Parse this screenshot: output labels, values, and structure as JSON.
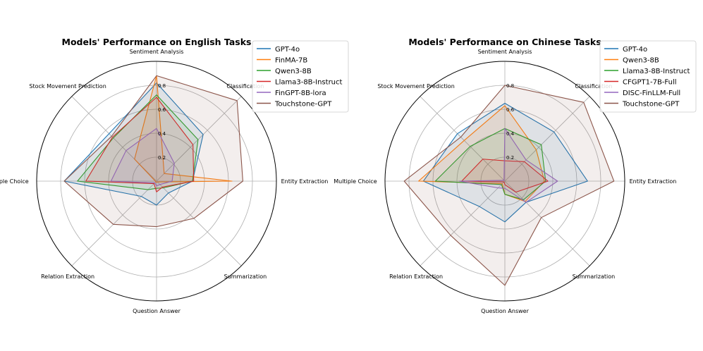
{
  "chart_data": [
    {
      "type": "radar",
      "title": "Models' Performance on English Tasks",
      "axes": [
        "Sentiment Analysis",
        "Classification",
        "Entity Extraction",
        "Summarization",
        "Question Answer",
        "Relation Extraction",
        "Multiple Choice",
        "Stock Movement Prediction"
      ],
      "rlim": [
        0,
        1
      ],
      "rticks": [
        "0.2",
        "0.4",
        "0.6",
        "0.8"
      ],
      "rtick_values": [
        0.2,
        0.4,
        0.6,
        0.8
      ],
      "grid": true,
      "legend": "top-right",
      "series": [
        {
          "name": "GPT-4o",
          "color": "#1f77b4",
          "values": [
            0.82,
            0.55,
            0.3,
            0.14,
            0.2,
            0.18,
            0.77,
            0.56
          ]
        },
        {
          "name": "FinMA-7B",
          "color": "#ff7f0e",
          "values": [
            0.88,
            0.09,
            0.63,
            0.01,
            0.01,
            0.01,
            0.01,
            0.26
          ]
        },
        {
          "name": "Qwen3-8B",
          "color": "#2ca02c",
          "values": [
            0.72,
            0.49,
            0.3,
            0.08,
            0.06,
            0.1,
            0.66,
            0.51
          ]
        },
        {
          "name": "Llama3-8B-Instruct",
          "color": "#d62728",
          "values": [
            0.7,
            0.43,
            0.31,
            0.07,
            0.09,
            0.03,
            0.59,
            0.52
          ]
        },
        {
          "name": "FinGPT-8B-lora",
          "color": "#9467bd",
          "values": [
            0.44,
            0.21,
            0.13,
            0.04,
            0.04,
            0.02,
            0.38,
            0.36
          ]
        },
        {
          "name": "Touchstone-GPT",
          "color": "#8c564b",
          "values": [
            0.88,
            0.95,
            0.72,
            0.44,
            0.38,
            0.51,
            0.77,
            0.53
          ]
        }
      ]
    },
    {
      "type": "radar",
      "title": "Models' Performance on Chinese Tasks",
      "axes": [
        "Sentiment Analysis",
        "Classification",
        "Entity Extraction",
        "Summarization",
        "Question Answer",
        "Relation Extraction",
        "Multiple Choice",
        "Stock Movement Prediction"
      ],
      "rlim": [
        0,
        1
      ],
      "rticks": [
        "0.2",
        "0.4",
        "0.6",
        "0.8"
      ],
      "rtick_values": [
        0.2,
        0.4,
        0.6,
        0.8
      ],
      "grid": true,
      "legend": "top-right",
      "series": [
        {
          "name": "GPT-4o",
          "color": "#1f77b4",
          "values": [
            0.65,
            0.58,
            0.69,
            0.25,
            0.34,
            0.3,
            0.68,
            0.56
          ]
        },
        {
          "name": "Qwen3-8B",
          "color": "#ff7f0e",
          "values": [
            0.63,
            0.37,
            0.33,
            0.24,
            0.11,
            0.03,
            0.72,
            0.48
          ]
        },
        {
          "name": "Llama3-8B-Instruct",
          "color": "#2ca02c",
          "values": [
            0.44,
            0.43,
            0.34,
            0.22,
            0.11,
            0.04,
            0.58,
            0.41
          ]
        },
        {
          "name": "CFGPT1-7B-Full",
          "color": "#d62728",
          "values": [
            0.17,
            0.23,
            0.36,
            0.13,
            0.03,
            0.01,
            0.36,
            0.26
          ]
        },
        {
          "name": "DISC-FinLLM-Full",
          "color": "#9467bd",
          "values": [
            0.44,
            0.25,
            0.44,
            0.25,
            0.06,
            0.08,
            0.38,
            0.01
          ]
        },
        {
          "name": "Touchstone-GPT",
          "color": "#8c564b",
          "values": [
            0.8,
            0.93,
            0.91,
            0.43,
            0.87,
            0.64,
            0.84,
            0.52
          ]
        }
      ]
    }
  ]
}
